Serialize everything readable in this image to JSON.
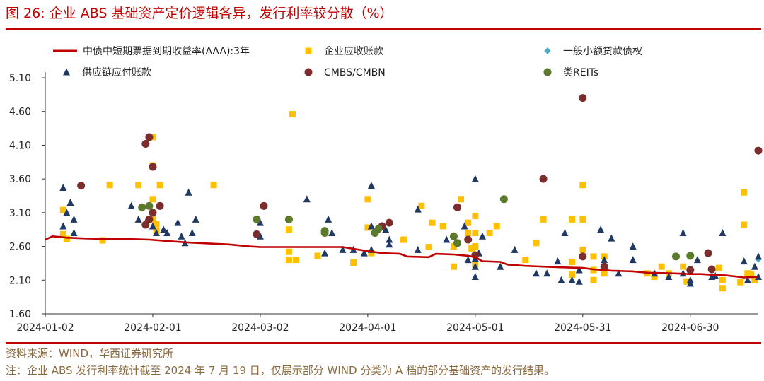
{
  "header": {
    "title": "图 26:  企业 ABS 基础资产定价逻辑各异，发行利率较分散（%）"
  },
  "footer": {
    "source": "资料来源：WIND，华西证券研究所",
    "note": "注：企业 ABS 发行利率统计截至 2024 年 7 月 19 日，仅展示部分 WIND 分类为 A 档的部分基础资产的发行结果。"
  },
  "colors": {
    "accent": "#c00000",
    "line": "#c00000",
    "receivable": "#ffc000",
    "microloan": "#4bacc6",
    "supplychain": "#1f3864",
    "cmbs": "#7b2c2c",
    "reits": "#5b7a2b"
  },
  "chart_data": {
    "type": "scatter",
    "x_type": "date",
    "xlim": [
      "2024-01-02",
      "2024-07-19"
    ],
    "x_ticks": [
      "2024-01-02",
      "2024-02-01",
      "2024-03-02",
      "2024-04-01",
      "2024-05-01",
      "2024-05-31",
      "2024-06-30"
    ],
    "ylim": [
      1.6,
      5.1
    ],
    "y_ticks": [
      "1.60",
      "2.10",
      "2.60",
      "3.10",
      "3.60",
      "4.10",
      "4.60",
      "5.10"
    ],
    "legend_position": "top",
    "grid": false,
    "series": [
      {
        "name": "中债中短期票据到期收益率(AAA):3年",
        "kind": "line",
        "marker": "line",
        "points": [
          [
            "2024-01-02",
            2.7
          ],
          [
            "2024-01-04",
            2.75
          ],
          [
            "2024-01-08",
            2.73
          ],
          [
            "2024-01-12",
            2.72
          ],
          [
            "2024-01-18",
            2.71
          ],
          [
            "2024-01-25",
            2.71
          ],
          [
            "2024-01-31",
            2.7
          ],
          [
            "2024-02-05",
            2.68
          ],
          [
            "2024-02-10",
            2.66
          ],
          [
            "2024-02-18",
            2.64
          ],
          [
            "2024-02-22",
            2.63
          ],
          [
            "2024-02-28",
            2.6
          ],
          [
            "2024-03-02",
            2.59
          ],
          [
            "2024-03-10",
            2.59
          ],
          [
            "2024-03-18",
            2.59
          ],
          [
            "2024-03-25",
            2.59
          ],
          [
            "2024-04-01",
            2.53
          ],
          [
            "2024-04-05",
            2.5
          ],
          [
            "2024-04-10",
            2.49
          ],
          [
            "2024-04-12",
            2.45
          ],
          [
            "2024-04-18",
            2.44
          ],
          [
            "2024-04-20",
            2.49
          ],
          [
            "2024-04-25",
            2.48
          ],
          [
            "2024-04-29",
            2.46
          ],
          [
            "2024-05-01",
            2.44
          ],
          [
            "2024-05-03",
            2.38
          ],
          [
            "2024-05-08",
            2.37
          ],
          [
            "2024-05-10",
            2.33
          ],
          [
            "2024-05-15",
            2.31
          ],
          [
            "2024-05-20",
            2.3
          ],
          [
            "2024-05-25",
            2.29
          ],
          [
            "2024-05-31",
            2.28
          ],
          [
            "2024-06-03",
            2.26
          ],
          [
            "2024-06-08",
            2.24
          ],
          [
            "2024-06-14",
            2.23
          ],
          [
            "2024-06-18",
            2.21
          ],
          [
            "2024-06-25",
            2.2
          ],
          [
            "2024-06-30",
            2.19
          ],
          [
            "2024-07-03",
            2.19
          ],
          [
            "2024-07-06",
            2.18
          ],
          [
            "2024-07-10",
            2.17
          ],
          [
            "2024-07-15",
            2.14
          ],
          [
            "2024-07-19",
            2.15
          ]
        ]
      },
      {
        "name": "企业应收账款",
        "kind": "scatter",
        "marker": "square",
        "points": [
          [
            "2024-01-07",
            3.14
          ],
          [
            "2024-01-07",
            2.78
          ],
          [
            "2024-01-08",
            2.71
          ],
          [
            "2024-01-18",
            2.69
          ],
          [
            "2024-01-20",
            3.51
          ],
          [
            "2024-01-28",
            3.51
          ],
          [
            "2024-02-01",
            4.22
          ],
          [
            "2024-02-01",
            3.8
          ],
          [
            "2024-02-01",
            3.3
          ],
          [
            "2024-02-01",
            3.0
          ],
          [
            "2024-02-02",
            2.93
          ],
          [
            "2024-02-02",
            2.83
          ],
          [
            "2024-02-03",
            3.51
          ],
          [
            "2024-02-18",
            3.51
          ],
          [
            "2024-03-11",
            4.56
          ],
          [
            "2024-03-10",
            2.85
          ],
          [
            "2024-03-10",
            2.52
          ],
          [
            "2024-03-10",
            2.4
          ],
          [
            "2024-03-12",
            2.4
          ],
          [
            "2024-03-18",
            2.46
          ],
          [
            "2024-03-28",
            2.36
          ],
          [
            "2024-04-01",
            3.3
          ],
          [
            "2024-04-01",
            2.88
          ],
          [
            "2024-04-02",
            2.5
          ],
          [
            "2024-04-11",
            2.7
          ],
          [
            "2024-04-16",
            3.2
          ],
          [
            "2024-04-18",
            2.59
          ],
          [
            "2024-04-19",
            2.95
          ],
          [
            "2024-04-22",
            2.9
          ],
          [
            "2024-04-25",
            2.6
          ],
          [
            "2024-04-25",
            2.3
          ],
          [
            "2024-04-27",
            3.3
          ],
          [
            "2024-04-29",
            2.95
          ],
          [
            "2024-04-29",
            2.8
          ],
          [
            "2024-04-30",
            2.57
          ],
          [
            "2024-05-01",
            3.05
          ],
          [
            "2024-05-01",
            2.8
          ],
          [
            "2024-05-01",
            2.6
          ],
          [
            "2024-05-01",
            2.32
          ],
          [
            "2024-05-05",
            2.8
          ],
          [
            "2024-05-07",
            2.9
          ],
          [
            "2024-05-15",
            2.4
          ],
          [
            "2024-05-18",
            2.65
          ],
          [
            "2024-05-20",
            3.0
          ],
          [
            "2024-05-28",
            3.0
          ],
          [
            "2024-05-28",
            2.37
          ],
          [
            "2024-05-28",
            2.18
          ],
          [
            "2024-05-31",
            3.51
          ],
          [
            "2024-05-31",
            2.55
          ],
          [
            "2024-05-31",
            3.0
          ],
          [
            "2024-06-03",
            2.45
          ],
          [
            "2024-06-03",
            2.25
          ],
          [
            "2024-06-03",
            2.1
          ],
          [
            "2024-06-06",
            2.45
          ],
          [
            "2024-06-06",
            2.2
          ],
          [
            "2024-06-18",
            2.2
          ],
          [
            "2024-06-20",
            2.15
          ],
          [
            "2024-06-22",
            2.3
          ],
          [
            "2024-06-24",
            2.2
          ],
          [
            "2024-06-28",
            2.3
          ],
          [
            "2024-06-29",
            2.08
          ],
          [
            "2024-07-08",
            2.28
          ],
          [
            "2024-07-09",
            2.1
          ],
          [
            "2024-07-09",
            1.98
          ],
          [
            "2024-07-14",
            2.07
          ],
          [
            "2024-07-15",
            3.4
          ],
          [
            "2024-07-15",
            2.92
          ],
          [
            "2024-07-16",
            2.2
          ],
          [
            "2024-07-17",
            2.18
          ],
          [
            "2024-07-18",
            2.1
          ]
        ]
      },
      {
        "name": "一般小额贷款债权",
        "kind": "scatter",
        "marker": "diamond",
        "points": [
          [
            "2024-07-19",
            2.41
          ]
        ]
      },
      {
        "name": "供应链应付账款",
        "kind": "scatter",
        "marker": "triangle",
        "points": [
          [
            "2024-01-07",
            3.47
          ],
          [
            "2024-01-08",
            3.1
          ],
          [
            "2024-01-09",
            3.25
          ],
          [
            "2024-01-07",
            2.9
          ],
          [
            "2024-01-10",
            2.8
          ],
          [
            "2024-01-10",
            3.0
          ],
          [
            "2024-01-28",
            3.0
          ],
          [
            "2024-01-26",
            3.2
          ],
          [
            "2024-01-30",
            2.95
          ],
          [
            "2024-01-31",
            3.2
          ],
          [
            "2024-02-01",
            2.9
          ],
          [
            "2024-02-02",
            2.8
          ],
          [
            "2024-02-04",
            2.85
          ],
          [
            "2024-02-05",
            2.8
          ],
          [
            "2024-02-08",
            2.95
          ],
          [
            "2024-02-09",
            2.75
          ],
          [
            "2024-02-10",
            2.65
          ],
          [
            "2024-02-11",
            3.4
          ],
          [
            "2024-02-13",
            3.0
          ],
          [
            "2024-02-12",
            2.8
          ],
          [
            "2024-03-02",
            2.75
          ],
          [
            "2024-03-02",
            2.95
          ],
          [
            "2024-03-15",
            3.3
          ],
          [
            "2024-03-20",
            2.5
          ],
          [
            "2024-03-21",
            3.0
          ],
          [
            "2024-03-22",
            2.8
          ],
          [
            "2024-03-25",
            2.55
          ],
          [
            "2024-03-28",
            2.55
          ],
          [
            "2024-03-31",
            2.5
          ],
          [
            "2024-04-02",
            3.5
          ],
          [
            "2024-04-02",
            2.9
          ],
          [
            "2024-04-02",
            2.55
          ],
          [
            "2024-04-06",
            2.85
          ],
          [
            "2024-04-07",
            2.7
          ],
          [
            "2024-04-07",
            2.63
          ],
          [
            "2024-04-15",
            3.15
          ],
          [
            "2024-04-15",
            2.55
          ],
          [
            "2024-04-23",
            2.7
          ],
          [
            "2024-04-28",
            2.9
          ],
          [
            "2024-04-29",
            2.4
          ],
          [
            "2024-05-01",
            3.6
          ],
          [
            "2024-05-01",
            2.42
          ],
          [
            "2024-05-01",
            2.3
          ],
          [
            "2024-05-01",
            2.15
          ],
          [
            "2024-05-02",
            2.5
          ],
          [
            "2024-05-03",
            2.75
          ],
          [
            "2024-05-08",
            2.3
          ],
          [
            "2024-05-12",
            2.55
          ],
          [
            "2024-05-18",
            2.2
          ],
          [
            "2024-05-21",
            2.2
          ],
          [
            "2024-05-24",
            2.38
          ],
          [
            "2024-05-25",
            2.1
          ],
          [
            "2024-05-26",
            2.8
          ],
          [
            "2024-05-28",
            2.1
          ],
          [
            "2024-05-30",
            2.08
          ],
          [
            "2024-05-30",
            2.25
          ],
          [
            "2024-06-05",
            2.85
          ],
          [
            "2024-06-06",
            2.4
          ],
          [
            "2024-06-08",
            2.72
          ],
          [
            "2024-06-10",
            2.2
          ],
          [
            "2024-06-14",
            2.6
          ],
          [
            "2024-06-14",
            2.4
          ],
          [
            "2024-06-20",
            2.2
          ],
          [
            "2024-06-24",
            2.15
          ],
          [
            "2024-06-28",
            2.8
          ],
          [
            "2024-06-28",
            2.2
          ],
          [
            "2024-06-30",
            2.1
          ],
          [
            "2024-06-30",
            2.05
          ],
          [
            "2024-07-02",
            2.4
          ],
          [
            "2024-07-06",
            2.15
          ],
          [
            "2024-07-07",
            2.16
          ],
          [
            "2024-07-09",
            2.8
          ],
          [
            "2024-07-15",
            2.38
          ],
          [
            "2024-07-16",
            2.1
          ],
          [
            "2024-07-18",
            2.3
          ],
          [
            "2024-07-19",
            2.45
          ],
          [
            "2024-07-19",
            2.15
          ]
        ]
      },
      {
        "name": "CMBS/CMBN",
        "kind": "scatter",
        "marker": "circle",
        "points": [
          [
            "2024-01-12",
            3.5
          ],
          [
            "2024-01-30",
            4.12
          ],
          [
            "2024-01-31",
            4.22
          ],
          [
            "2024-01-30",
            2.92
          ],
          [
            "2024-01-31",
            3.0
          ],
          [
            "2024-02-01",
            3.78
          ],
          [
            "2024-02-01",
            3.1
          ],
          [
            "2024-02-03",
            3.2
          ],
          [
            "2024-03-01",
            2.78
          ],
          [
            "2024-03-03",
            3.2
          ],
          [
            "2024-04-05",
            2.9
          ],
          [
            "2024-04-07",
            2.95
          ],
          [
            "2024-04-26",
            3.18
          ],
          [
            "2024-04-29",
            2.7
          ],
          [
            "2024-05-01",
            2.47
          ],
          [
            "2024-05-20",
            3.6
          ],
          [
            "2024-05-31",
            4.8
          ],
          [
            "2024-05-31",
            2.45
          ],
          [
            "2024-06-06",
            2.3
          ],
          [
            "2024-06-30",
            2.25
          ],
          [
            "2024-07-05",
            2.5
          ],
          [
            "2024-07-06",
            2.26
          ],
          [
            "2024-07-19",
            4.02
          ]
        ]
      },
      {
        "name": "类REITs",
        "kind": "scatter",
        "marker": "circle",
        "points": [
          [
            "2024-01-29",
            3.18
          ],
          [
            "2024-01-31",
            3.2
          ],
          [
            "2024-03-01",
            3.0
          ],
          [
            "2024-03-10",
            3.0
          ],
          [
            "2024-03-20",
            2.83
          ],
          [
            "2024-03-20",
            2.8
          ],
          [
            "2024-04-03",
            2.8
          ],
          [
            "2024-04-04",
            2.86
          ],
          [
            "2024-04-25",
            2.75
          ],
          [
            "2024-04-26",
            2.65
          ],
          [
            "2024-05-09",
            3.3
          ],
          [
            "2024-06-26",
            2.45
          ],
          [
            "2024-06-30",
            2.46
          ]
        ]
      }
    ]
  }
}
